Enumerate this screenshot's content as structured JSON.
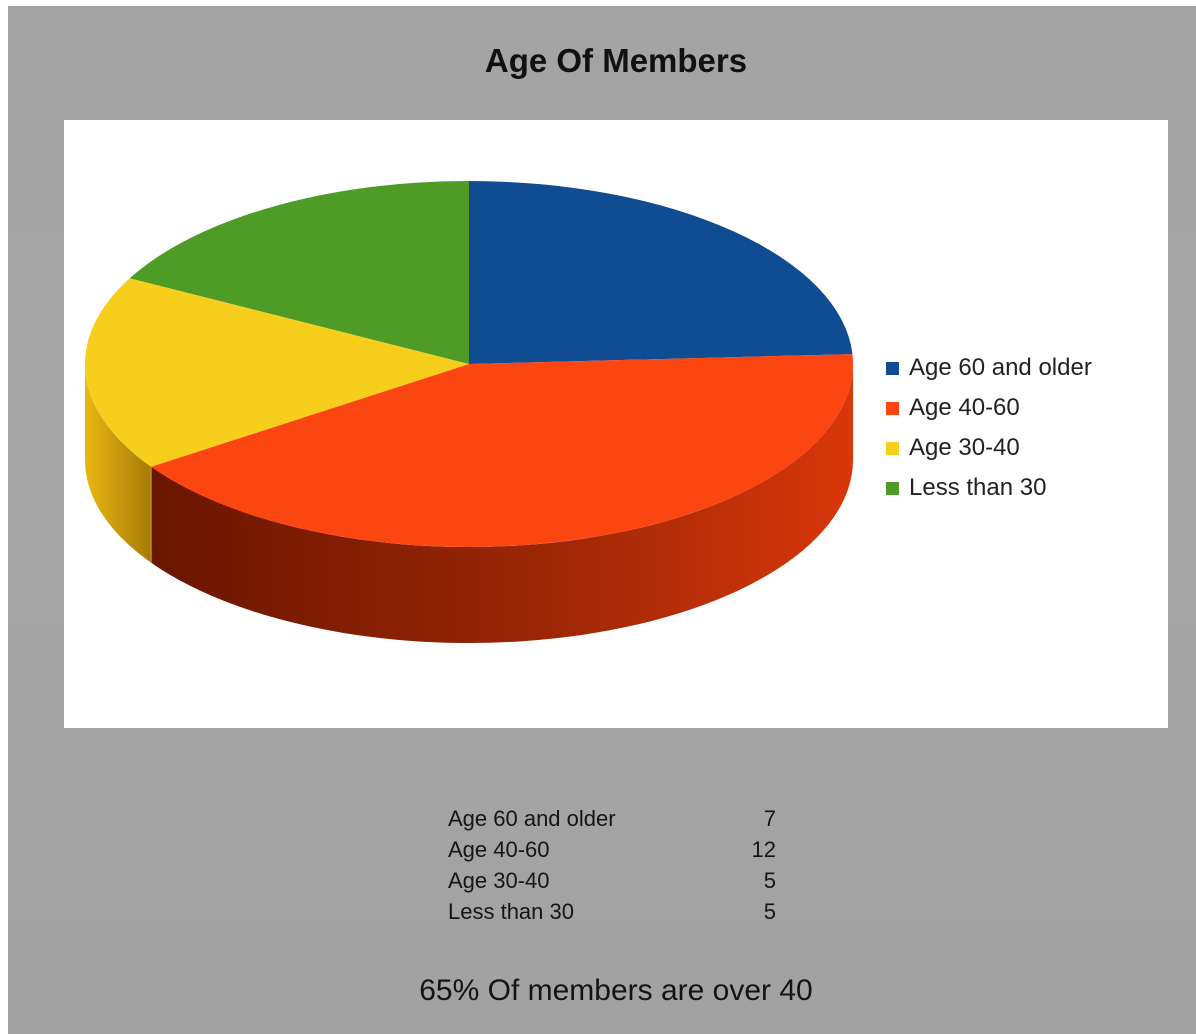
{
  "chart_data": {
    "type": "pie",
    "title": "Age Of Members",
    "categories": [
      "Age 60 and older",
      "Age 40-60",
      "Age 30-40",
      "Less than 30"
    ],
    "values": [
      7,
      12,
      5,
      5
    ],
    "colors": [
      "#0f4c92",
      "#fc4612",
      "#f8ce1c",
      "#4e9b26"
    ],
    "three_d": true,
    "legend_placement": "right"
  },
  "title": "Age Of Members",
  "legend": [
    {
      "label": "Age 60 and older",
      "color": "#0f4c92"
    },
    {
      "label": "Age 40-60",
      "color": "#fc4612"
    },
    {
      "label": "Age 30-40",
      "color": "#f8ce1c"
    },
    {
      "label": "Less than 30",
      "color": "#4e9b26"
    }
  ],
  "table": [
    {
      "label": "Age 60 and older",
      "value": "7"
    },
    {
      "label": "Age 40-60",
      "value": "12"
    },
    {
      "label": "Age 30-40",
      "value": "5"
    },
    {
      "label": "Less than 30",
      "value": "5"
    }
  ],
  "summary": "65% Of members are over 40"
}
